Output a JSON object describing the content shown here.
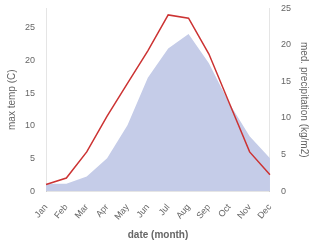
{
  "chart_data": {
    "type": "line",
    "categories": [
      "Jan",
      "Feb",
      "Mar",
      "Apr",
      "May",
      "Jun",
      "Jul",
      "Aug",
      "Sep",
      "Oct",
      "Nov",
      "Dec"
    ],
    "series": [
      {
        "type": "area",
        "color": "#c5cce8",
        "axis": "y2",
        "values": [
          1.0,
          1.0,
          2.0,
          4.5,
          9.0,
          15.5,
          19.5,
          21.5,
          17.5,
          12.0,
          7.5,
          4.5
        ]
      },
      {
        "type": "line",
        "color": "#cc3333",
        "axis": "y",
        "values": [
          1.0,
          2.0,
          6.0,
          11.5,
          16.5,
          21.5,
          27.0,
          26.5,
          21.0,
          13.5,
          6.0,
          2.5
        ]
      }
    ],
    "xlabel": "date (month)",
    "ylabel": "max temp (C)",
    "y2label": "med. precipitation (kg/m2)",
    "ylim": [
      0,
      28
    ],
    "yticks": [
      0,
      5,
      10,
      15,
      20,
      25
    ],
    "y2lim": [
      0,
      25
    ],
    "y2ticks": [
      0,
      5,
      10,
      15,
      20,
      25
    ],
    "grid": false
  }
}
